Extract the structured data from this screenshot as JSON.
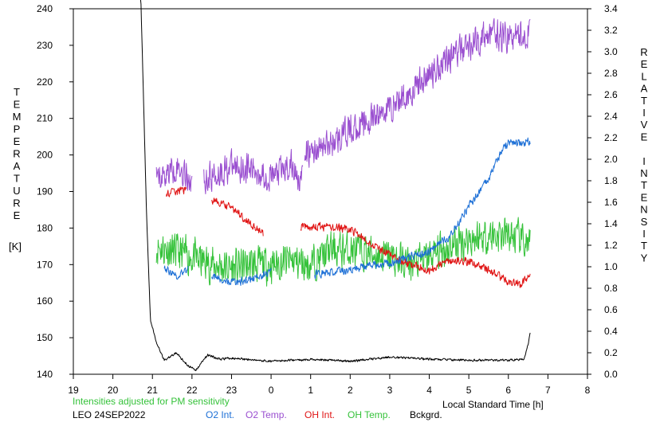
{
  "chart_data": {
    "type": "line",
    "left_axis": {
      "label_letters": [
        "T",
        "E",
        "M",
        "P",
        "E",
        "R",
        "A",
        "T",
        "U",
        "R",
        "E"
      ],
      "unit": "[K]",
      "ylim": [
        140,
        240
      ],
      "ticks": [
        "240",
        "230",
        "220",
        "210",
        "200",
        "190",
        "180",
        "170",
        "160",
        "150",
        "140"
      ],
      "tick_values": [
        240,
        230,
        220,
        210,
        200,
        190,
        180,
        170,
        160,
        150,
        140
      ]
    },
    "right_axis": {
      "label_words": [
        [
          "R",
          "E",
          "L",
          "A",
          "T",
          "I",
          "V",
          "E"
        ],
        [
          "I",
          "N",
          "T",
          "E",
          "N",
          "S",
          "I",
          "T",
          "Y"
        ]
      ],
      "ylim": [
        0,
        3.4
      ],
      "ticks": [
        "3.4",
        "3.2",
        "3.0",
        "2.8",
        "2.6",
        "2.4",
        "2.2",
        "2.0",
        "1.8",
        "1.6",
        "1.4",
        "1.2",
        "1.0",
        "0.8",
        "0.6",
        "0.4",
        "0.2",
        "0.0"
      ],
      "tick_values": [
        3.4,
        3.2,
        3.0,
        2.8,
        2.6,
        2.4,
        2.2,
        2.0,
        1.8,
        1.6,
        1.4,
        1.2,
        1.0,
        0.8,
        0.6,
        0.4,
        0.2,
        0.0
      ]
    },
    "x_axis": {
      "xlabel": "Local Standard Time [h]",
      "xlim": [
        19,
        32
      ],
      "ticks": [
        "19",
        "20",
        "21",
        "22",
        "23",
        "0",
        "1",
        "2",
        "3",
        "4",
        "5",
        "6",
        "7",
        "8"
      ],
      "tick_values": [
        19,
        20,
        21,
        22,
        23,
        24,
        25,
        26,
        27,
        28,
        29,
        30,
        31,
        32
      ]
    },
    "note": "Intensities adjusted for PM sensitivity",
    "station": "LEO 24SEP2022",
    "legend": [
      {
        "label": "O2 Int.",
        "color": "#1c6fd6"
      },
      {
        "label": "O2 Temp.",
        "color": "#9a4fd0"
      },
      {
        "label": "OH Int.",
        "color": "#e01414"
      },
      {
        "label": "OH Temp.",
        "color": "#35c23a"
      },
      {
        "label": "Bckgrd.",
        "color": "#000000"
      }
    ],
    "series": [
      {
        "name": "O2 Temp.",
        "axis": "left",
        "color": "#9a4fd0",
        "noise": 5,
        "segments": [
          {
            "x": [
              21.1,
              21.6,
              22.0
            ],
            "y": [
              193,
              197,
              193
            ]
          },
          {
            "x": [
              22.3,
              23.0,
              23.5,
              24.0,
              24.5,
              24.8
            ],
            "y": [
              193,
              197,
              196,
              194,
              197,
              193
            ]
          },
          {
            "x": [
              24.85,
              25.5,
              26.0,
              26.5,
              27.0,
              27.5,
              28.0,
              28.5,
              29.0,
              29.5,
              30.0,
              30.3,
              30.55
            ],
            "y": [
              200,
              203,
              207,
              209,
              213,
              217,
              222,
              227,
              230,
              233,
              232,
              233,
              233
            ]
          }
        ]
      },
      {
        "name": "O2 Int.",
        "axis": "right",
        "color": "#1c6fd6",
        "noise": 0.045,
        "segments": [
          {
            "x": [
              21.3,
              21.6,
              21.9
            ],
            "y": [
              0.99,
              0.91,
              0.98
            ]
          },
          {
            "x": [
              22.5,
              23.0,
              23.5,
              24.0
            ],
            "y": [
              0.92,
              0.85,
              0.88,
              0.96
            ]
          },
          {
            "x": [
              25.1,
              26.0,
              26.5,
              27.0,
              27.5,
              28.0,
              28.5,
              29.0,
              29.5,
              29.8,
              30.0,
              30.3,
              30.55
            ],
            "y": [
              0.93,
              0.97,
              1.01,
              1.04,
              1.09,
              1.14,
              1.28,
              1.56,
              1.82,
              2.06,
              2.16,
              2.15,
              2.17
            ]
          }
        ]
      },
      {
        "name": "OH Int.",
        "axis": "right",
        "color": "#e01414",
        "noise": 0.045,
        "segments": [
          {
            "x": [
              21.35,
              21.7,
              21.85
            ],
            "y": [
              1.68,
              1.71,
              1.72
            ]
          },
          {
            "x": [
              22.5,
              23.0,
              23.5,
              23.8
            ],
            "y": [
              1.62,
              1.55,
              1.4,
              1.3
            ]
          },
          {
            "x": [
              24.75,
              25.5,
              26.0,
              26.5,
              27.0,
              27.5,
              28.0,
              28.5,
              29.0,
              29.5,
              30.0,
              30.3,
              30.55
            ],
            "y": [
              1.37,
              1.37,
              1.35,
              1.22,
              1.11,
              1.02,
              0.97,
              1.06,
              1.05,
              0.97,
              0.86,
              0.83,
              0.93
            ]
          }
        ]
      },
      {
        "name": "OH Temp.",
        "axis": "left",
        "color": "#35c23a",
        "noise": 6,
        "segments": [
          {
            "x": [
              21.1,
              22.0,
              22.5,
              23.0,
              23.5,
              24.0,
              24.5,
              25.0,
              25.5,
              26.0,
              26.5,
              27.0,
              27.5,
              28.0,
              28.5,
              29.0,
              29.5,
              30.0,
              30.3,
              30.55
            ],
            "y": [
              175,
              172,
              170,
              169,
              170,
              170,
              171,
              170,
              174,
              174,
              173,
              172,
              170,
              172,
              175,
              177,
              178,
              178,
              177,
              175
            ]
          }
        ]
      },
      {
        "name": "Bckgrd.",
        "axis": "right",
        "color": "#000000",
        "noise": 0.012,
        "segments": [
          {
            "x": [
              20.7,
              20.85,
              20.95,
              21.1,
              21.3,
              21.6,
              21.9,
              22.1,
              22.4,
              22.7,
              23.0,
              24.0,
              25.0,
              26.0,
              27.0,
              28.0,
              29.0,
              30.0,
              30.4,
              30.5,
              30.55
            ],
            "y": [
              3.6,
              1.5,
              0.5,
              0.3,
              0.13,
              0.2,
              0.08,
              0.04,
              0.18,
              0.14,
              0.15,
              0.12,
              0.14,
              0.12,
              0.16,
              0.14,
              0.13,
              0.13,
              0.14,
              0.28,
              0.38
            ]
          }
        ]
      }
    ]
  }
}
